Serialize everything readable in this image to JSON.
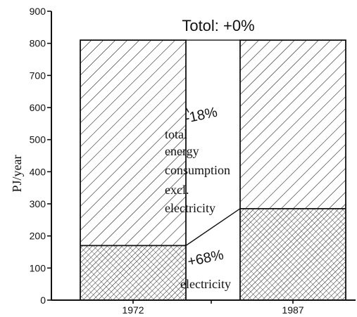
{
  "chart_data": {
    "type": "bar",
    "stacked": true,
    "title": "Totol: +0%",
    "xlabel": "",
    "ylabel": "PJ/year",
    "ylim": [
      0,
      900
    ],
    "yticks": [
      0,
      100,
      200,
      300,
      400,
      500,
      600,
      700,
      800,
      900
    ],
    "ytick_labels": [
      "0",
      "100",
      "200",
      "300",
      "400",
      "500",
      "600",
      "700",
      "800",
      "900"
    ],
    "categories": [
      "1972",
      "1987"
    ],
    "series": [
      {
        "key": "electricity",
        "values": [
          170,
          285
        ],
        "pattern": "dense-hatch"
      },
      {
        "key": "non_electric",
        "values": [
          640,
          525
        ],
        "pattern": "sparse-hatch"
      }
    ],
    "totals": [
      810,
      810
    ],
    "grid": false,
    "annotations": {
      "non_electric_change": "-18%",
      "electricity_change": "+68%",
      "non_electric_label": [
        "total",
        "energy",
        "consumption",
        "excl.",
        "electricity"
      ],
      "electricity_label": "electricity"
    },
    "colors": {
      "ink": "#111111",
      "background": "#ffffff"
    }
  }
}
